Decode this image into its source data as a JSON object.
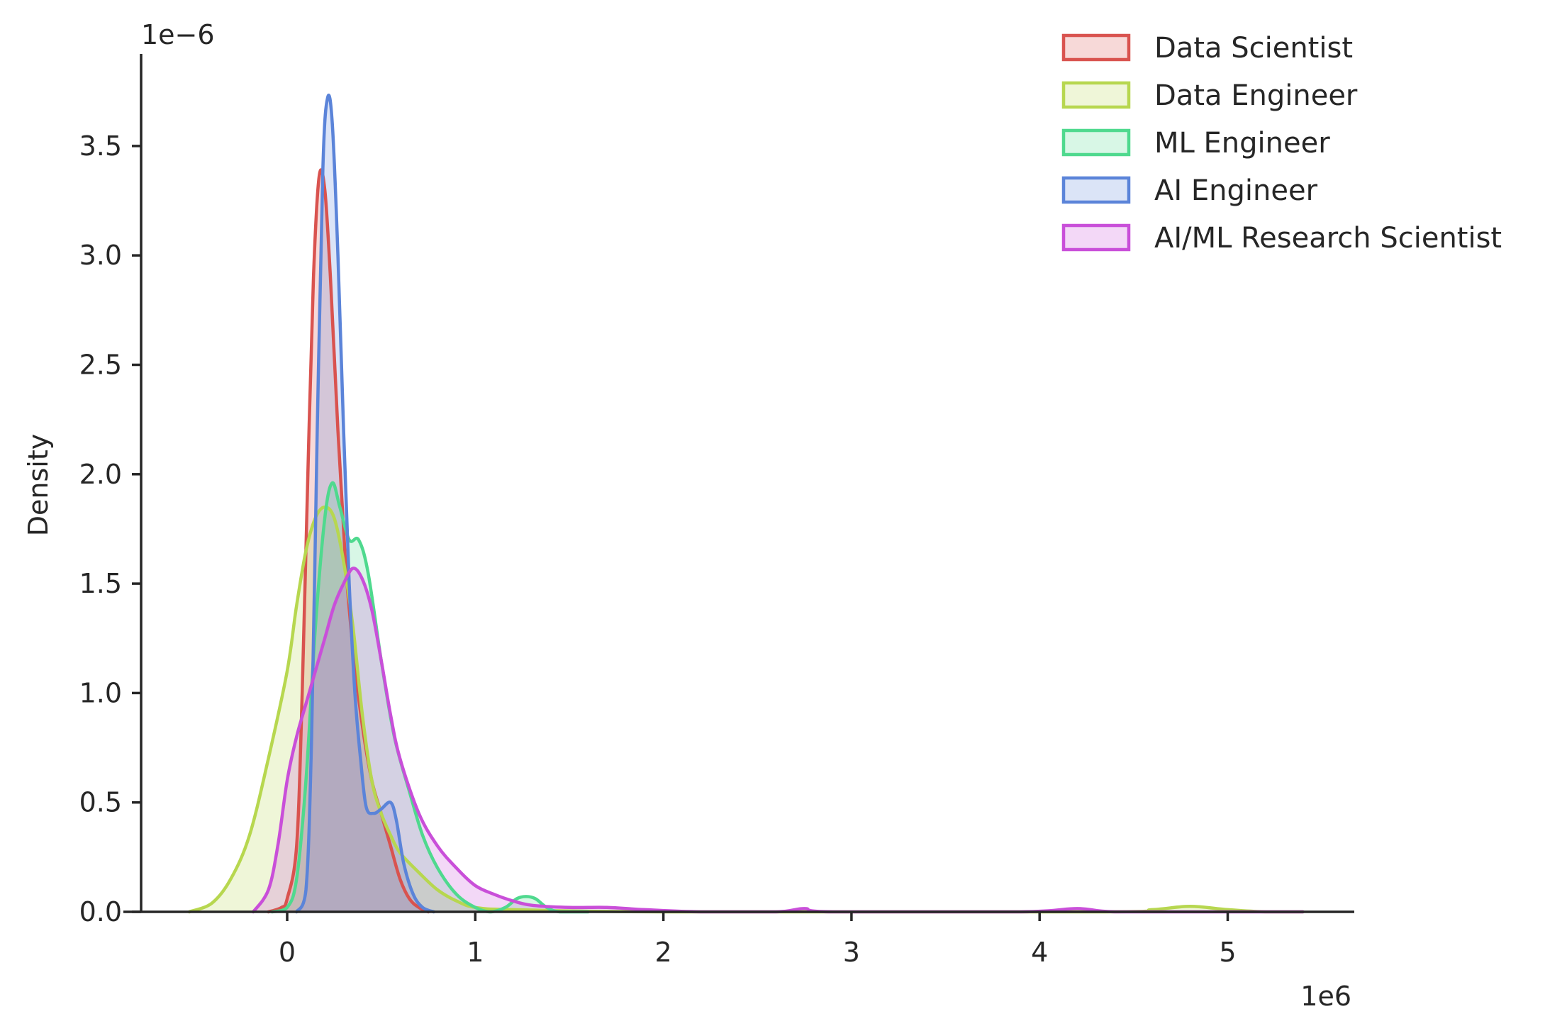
{
  "chart_data": {
    "type": "area",
    "subtype": "kde",
    "ylabel": "Density",
    "xlabel": "",
    "x_offset_label": "1e6",
    "y_offset_label": "1e−6",
    "xlim": [
      -0.78,
      5.65
    ],
    "ylim": [
      0,
      3.92
    ],
    "x_scale": 1000000,
    "y_scale": 1e-06,
    "x_ticks": [
      0,
      1,
      2,
      3,
      4,
      5
    ],
    "x_tick_labels": [
      "0",
      "1",
      "2",
      "3",
      "4",
      "5"
    ],
    "y_ticks": [
      0.0,
      0.5,
      1.0,
      1.5,
      2.0,
      2.5,
      3.0,
      3.5
    ],
    "y_tick_labels": [
      "0.0",
      "0.5",
      "1.0",
      "1.5",
      "2.0",
      "2.5",
      "3.0",
      "3.5"
    ],
    "grid": false,
    "legend_position": "top-right",
    "series": [
      {
        "name": "Data Scientist",
        "color": "#d9534f",
        "points": [
          [
            -0.1,
            0
          ],
          [
            -0.03,
            0.02
          ],
          [
            0.0,
            0.06
          ],
          [
            0.05,
            0.3
          ],
          [
            0.08,
            1.0
          ],
          [
            0.11,
            2.0
          ],
          [
            0.14,
            2.9
          ],
          [
            0.17,
            3.36
          ],
          [
            0.2,
            3.3
          ],
          [
            0.23,
            2.9
          ],
          [
            0.27,
            2.2
          ],
          [
            0.31,
            1.6
          ],
          [
            0.35,
            1.2
          ],
          [
            0.4,
            0.85
          ],
          [
            0.45,
            0.6
          ],
          [
            0.5,
            0.45
          ],
          [
            0.55,
            0.3
          ],
          [
            0.6,
            0.15
          ],
          [
            0.65,
            0.06
          ],
          [
            0.7,
            0.02
          ],
          [
            0.75,
            0.0
          ]
        ]
      },
      {
        "name": "Data Engineer",
        "color": "#b7d74f",
        "points": [
          [
            -0.52,
            0
          ],
          [
            -0.4,
            0.04
          ],
          [
            -0.3,
            0.15
          ],
          [
            -0.2,
            0.35
          ],
          [
            -0.1,
            0.7
          ],
          [
            0.0,
            1.1
          ],
          [
            0.05,
            1.4
          ],
          [
            0.1,
            1.65
          ],
          [
            0.15,
            1.8
          ],
          [
            0.2,
            1.85
          ],
          [
            0.25,
            1.8
          ],
          [
            0.3,
            1.6
          ],
          [
            0.35,
            1.3
          ],
          [
            0.4,
            0.9
          ],
          [
            0.45,
            0.6
          ],
          [
            0.5,
            0.45
          ],
          [
            0.55,
            0.35
          ],
          [
            0.6,
            0.27
          ],
          [
            0.7,
            0.18
          ],
          [
            0.8,
            0.1
          ],
          [
            0.9,
            0.05
          ],
          [
            1.0,
            0.02
          ],
          [
            1.2,
            0.01
          ],
          [
            2.0,
            0.0
          ],
          [
            4.3,
            0.0
          ],
          [
            4.6,
            0.01
          ],
          [
            4.8,
            0.025
          ],
          [
            5.0,
            0.01
          ],
          [
            5.2,
            0.0
          ],
          [
            5.4,
            0.0
          ]
        ]
      },
      {
        "name": "ML Engineer",
        "color": "#4fd98e",
        "points": [
          [
            -0.08,
            0
          ],
          [
            0.0,
            0.02
          ],
          [
            0.05,
            0.15
          ],
          [
            0.1,
            0.6
          ],
          [
            0.15,
            1.3
          ],
          [
            0.2,
            1.8
          ],
          [
            0.24,
            1.96
          ],
          [
            0.28,
            1.85
          ],
          [
            0.33,
            1.7
          ],
          [
            0.38,
            1.7
          ],
          [
            0.43,
            1.55
          ],
          [
            0.5,
            1.15
          ],
          [
            0.57,
            0.8
          ],
          [
            0.65,
            0.55
          ],
          [
            0.72,
            0.35
          ],
          [
            0.8,
            0.2
          ],
          [
            0.9,
            0.08
          ],
          [
            1.0,
            0.02
          ],
          [
            1.08,
            0.0
          ],
          [
            1.16,
            0.02
          ],
          [
            1.22,
            0.06
          ],
          [
            1.27,
            0.07
          ],
          [
            1.32,
            0.06
          ],
          [
            1.38,
            0.02
          ],
          [
            1.45,
            0.0
          ],
          [
            1.6,
            0.0
          ]
        ]
      },
      {
        "name": "AI Engineer",
        "color": "#5b84d9",
        "points": [
          [
            0.05,
            0
          ],
          [
            0.1,
            0.1
          ],
          [
            0.13,
            0.8
          ],
          [
            0.16,
            2.2
          ],
          [
            0.19,
            3.4
          ],
          [
            0.215,
            3.72
          ],
          [
            0.24,
            3.6
          ],
          [
            0.27,
            3.0
          ],
          [
            0.3,
            2.2
          ],
          [
            0.33,
            1.5
          ],
          [
            0.36,
            1.0
          ],
          [
            0.39,
            0.7
          ],
          [
            0.42,
            0.48
          ],
          [
            0.46,
            0.45
          ],
          [
            0.5,
            0.47
          ],
          [
            0.55,
            0.5
          ],
          [
            0.58,
            0.42
          ],
          [
            0.62,
            0.22
          ],
          [
            0.67,
            0.08
          ],
          [
            0.72,
            0.02
          ],
          [
            0.78,
            0.0
          ]
        ]
      },
      {
        "name": "AI/ML Research Scientist",
        "color": "#c94fd9",
        "points": [
          [
            -0.18,
            0
          ],
          [
            -0.1,
            0.1
          ],
          [
            -0.05,
            0.3
          ],
          [
            0.0,
            0.6
          ],
          [
            0.05,
            0.8
          ],
          [
            0.1,
            0.95
          ],
          [
            0.15,
            1.1
          ],
          [
            0.2,
            1.25
          ],
          [
            0.25,
            1.4
          ],
          [
            0.3,
            1.5
          ],
          [
            0.35,
            1.57
          ],
          [
            0.4,
            1.52
          ],
          [
            0.45,
            1.38
          ],
          [
            0.5,
            1.15
          ],
          [
            0.55,
            0.9
          ],
          [
            0.6,
            0.7
          ],
          [
            0.7,
            0.45
          ],
          [
            0.8,
            0.3
          ],
          [
            0.9,
            0.2
          ],
          [
            1.0,
            0.12
          ],
          [
            1.1,
            0.08
          ],
          [
            1.2,
            0.05
          ],
          [
            1.3,
            0.03
          ],
          [
            1.5,
            0.02
          ],
          [
            1.7,
            0.02
          ],
          [
            1.9,
            0.01
          ],
          [
            2.2,
            0.0
          ],
          [
            2.6,
            0.0
          ],
          [
            2.75,
            0.015
          ],
          [
            2.9,
            0.0
          ],
          [
            3.9,
            0.0
          ],
          [
            4.2,
            0.015
          ],
          [
            4.4,
            0.0
          ],
          [
            5.0,
            0.0
          ],
          [
            5.4,
            0.0
          ]
        ]
      }
    ]
  }
}
